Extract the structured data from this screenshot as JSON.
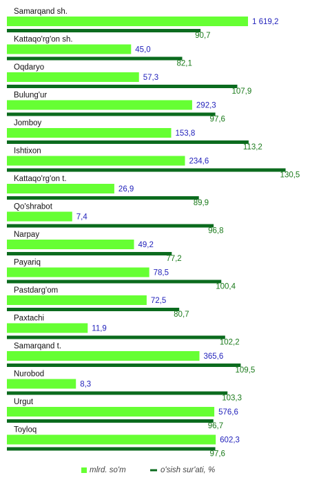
{
  "chart_data": {
    "type": "bar",
    "orientation": "horizontal",
    "categories": [
      "Samarqand sh.",
      "Kattaqo'rg'on sh.",
      "Oqdaryo",
      "Bulung'ur",
      "Jomboy",
      "Ishtixon",
      "Kattaqo'rg'on t.",
      "Qo'shrabot",
      "Narpay",
      "Payariq",
      "Pastdarg'om",
      "Paxtachi",
      "Samarqand t.",
      "Nurobod",
      "Urgut",
      "Toyloq"
    ],
    "series": [
      {
        "name": "mlrd. so'm",
        "color": "#66ff33",
        "label_color": "#2222bb",
        "axis": "x2",
        "values": [
          1619.2,
          45.0,
          57.3,
          292.3,
          153.8,
          234.6,
          26.9,
          7.4,
          49.2,
          78.5,
          72.5,
          11.9,
          365.6,
          8.3,
          576.6,
          602.3
        ],
        "value_labels": [
          "1 619,2",
          "45,0",
          "57,3",
          "292,3",
          "153,8",
          "234,6",
          "26,9",
          "7,4",
          "49,2",
          "78,5",
          "72,5",
          "11,9",
          "365,6",
          "8,3",
          "576,6",
          "602,3"
        ]
      },
      {
        "name": "o'sish sur'ati, %",
        "color": "#0b6b1e",
        "label_color": "#1a7a1a",
        "values": [
          90.7,
          82.1,
          107.9,
          97.6,
          113.2,
          130.5,
          89.9,
          96.8,
          77.2,
          100.4,
          80.7,
          102.2,
          109.5,
          103.3,
          96.7,
          97.6
        ],
        "value_labels": [
          "90,7",
          "82,1",
          "107,9",
          "97,6",
          "113,2",
          "130,5",
          "89,9",
          "96,8",
          "77,2",
          "100,4",
          "80,7",
          "102,2",
          "109,5",
          "103,3",
          "96,7",
          "97,6"
        ]
      }
    ],
    "xlim": [
      0,
      140
    ],
    "x2lim": [
      1,
      2000
    ],
    "x2log": true,
    "legend": "bottom"
  }
}
